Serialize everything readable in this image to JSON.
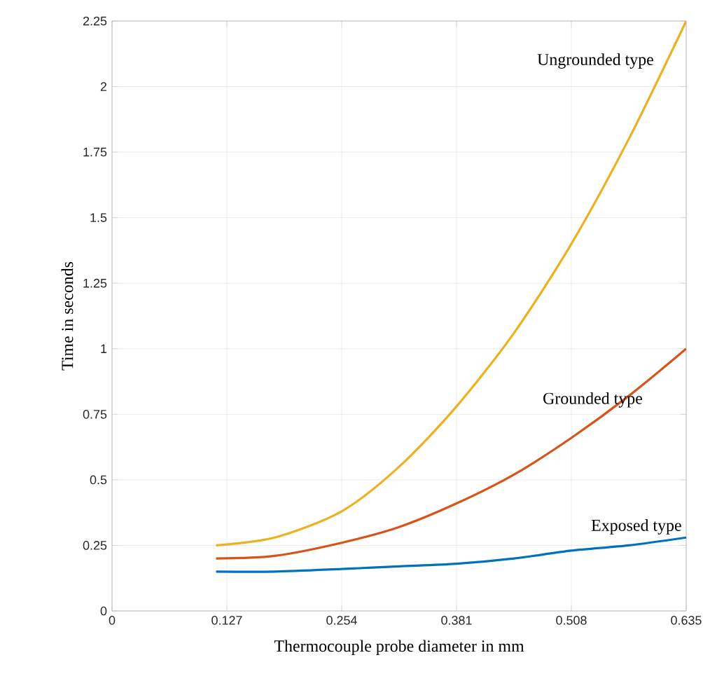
{
  "chart_data": {
    "type": "line",
    "xlabel": "Thermocouple probe diameter in mm",
    "ylabel": "Time in seconds",
    "x": [
      0.115,
      0.18,
      0.254,
      0.3175,
      0.381,
      0.4445,
      0.508,
      0.5715,
      0.635
    ],
    "series": [
      {
        "name": "Ungrounded type",
        "color": "#edb120",
        "values": [
          0.25,
          0.28,
          0.38,
          0.55,
          0.78,
          1.06,
          1.4,
          1.8,
          2.25
        ]
      },
      {
        "name": "Grounded type",
        "color": "#d95319",
        "values": [
          0.2,
          0.21,
          0.26,
          0.32,
          0.41,
          0.52,
          0.66,
          0.82,
          1.0
        ]
      },
      {
        "name": "Exposed type",
        "color": "#0072bd",
        "values": [
          0.15,
          0.15,
          0.16,
          0.17,
          0.18,
          0.2,
          0.23,
          0.25,
          0.28
        ]
      }
    ],
    "xlim": [
      0,
      0.635
    ],
    "xticks": [
      0,
      0.127,
      0.254,
      0.381,
      0.508,
      0.635
    ],
    "ylim": [
      0,
      2.25
    ],
    "yticks": [
      0,
      0.25,
      0.5,
      0.75,
      1,
      1.25,
      1.5,
      1.75,
      2,
      2.25
    ],
    "grid": true,
    "legend": false,
    "marker": "none",
    "line_style": "solid"
  }
}
